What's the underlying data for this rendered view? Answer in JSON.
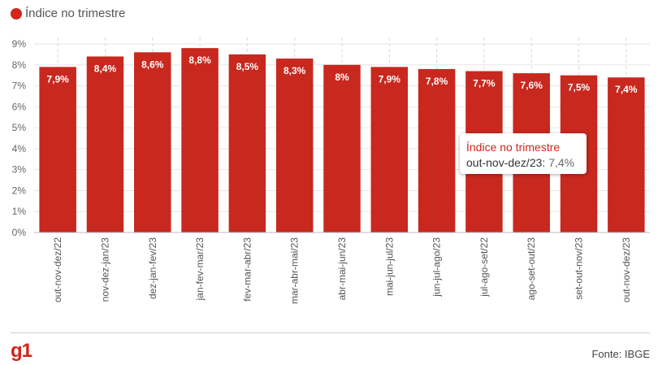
{
  "legend": {
    "label": "Índice no trimestre"
  },
  "colors": {
    "bar": "#c8281e",
    "accent": "#d0261c",
    "grid": "#e6e6e6"
  },
  "chart_data": {
    "type": "bar",
    "categories": [
      "out-nov-dez/22",
      "nov-dez-jan/23",
      "dez-jan-fev/23",
      "jan-fev-mar/23",
      "fev-mar-abr/23",
      "mar-abr-mai/23",
      "abr-mai-jun/23",
      "mai-jun-jul/23",
      "jun-jul-ago/23",
      "jul-ago-set/22",
      "ago-set-out/23",
      "set-out-nov/23",
      "out-nov-dez/23"
    ],
    "series": [
      {
        "name": "Índice no trimestre",
        "values": [
          7.9,
          8.4,
          8.6,
          8.8,
          8.5,
          8.3,
          8.0,
          7.9,
          7.8,
          7.7,
          7.6,
          7.5,
          7.4
        ]
      }
    ],
    "value_labels": [
      "7,9%",
      "8,4%",
      "8,6%",
      "8,8%",
      "8,5%",
      "8,3%",
      "8%",
      "7,9%",
      "7,8%",
      "7,7%",
      "7,6%",
      "7,5%",
      "7,4%"
    ],
    "y_ticks": [
      0,
      1,
      2,
      3,
      4,
      5,
      6,
      7,
      8,
      9
    ],
    "y_tick_labels": [
      "0%",
      "1%",
      "2%",
      "3%",
      "4%",
      "5%",
      "6%",
      "7%",
      "8%",
      "9%"
    ],
    "ylim": [
      0,
      9
    ],
    "grid": true,
    "legend_position": "top-left"
  },
  "tooltip": {
    "title": "Índice no trimestre",
    "category": "out-nov-dez/23:",
    "value": "7,4%"
  },
  "footer": {
    "logo": "g1",
    "source": "Fonte: IBGE"
  }
}
